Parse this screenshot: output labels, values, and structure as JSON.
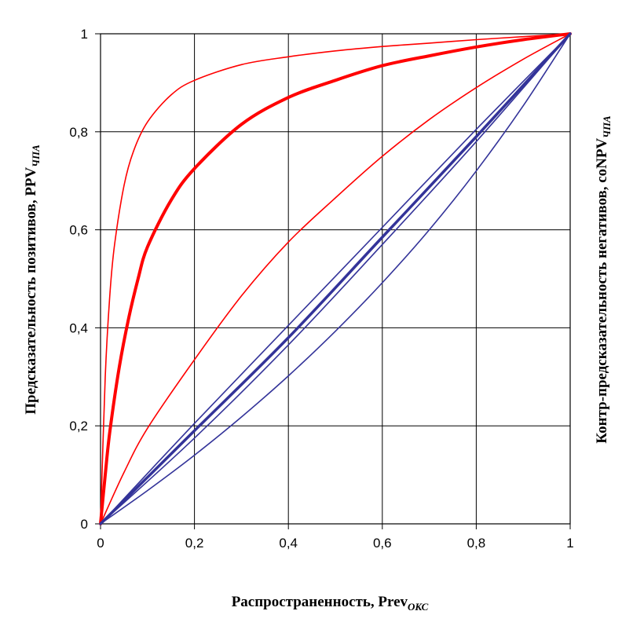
{
  "chart_data": {
    "type": "line",
    "xlim": [
      0,
      1
    ],
    "ylim": [
      0,
      1
    ],
    "grid": true,
    "xticks": [
      "0",
      "0,2",
      "0,4",
      "0,6",
      "0,8",
      "1"
    ],
    "yticks": [
      "0",
      "0,2",
      "0,4",
      "0,6",
      "0,8",
      "1"
    ],
    "xlabel": {
      "main": "Распространенность,  Prev",
      "sub": "ОКС"
    },
    "ylabel_left": {
      "main": "Предсказательность позитивов, PPV",
      "sub": "ЧПА"
    },
    "ylabel_right": {
      "main": "Контр-предсказательность негативов, coNPV",
      "sub": "ЧПА"
    },
    "colors": {
      "ppv": "#ff0000",
      "conpv": "#333399",
      "grid": "#000000"
    },
    "series": [
      {
        "group": "ppv",
        "width": 1.6,
        "x": [
          0,
          0.01,
          0.02,
          0.03,
          0.05,
          0.07,
          0.1,
          0.15,
          0.2,
          0.3,
          0.4,
          0.5,
          0.6,
          0.7,
          0.8,
          0.9,
          1
        ],
        "y": [
          0,
          0.3,
          0.47,
          0.57,
          0.69,
          0.76,
          0.82,
          0.875,
          0.905,
          0.937,
          0.953,
          0.965,
          0.974,
          0.981,
          0.988,
          0.994,
          1
        ]
      },
      {
        "group": "ppv",
        "width": 4,
        "x": [
          0,
          0.01,
          0.02,
          0.04,
          0.06,
          0.08,
          0.1,
          0.15,
          0.2,
          0.3,
          0.4,
          0.5,
          0.6,
          0.7,
          0.8,
          0.9,
          1
        ],
        "y": [
          0,
          0.1,
          0.19,
          0.32,
          0.42,
          0.5,
          0.565,
          0.66,
          0.725,
          0.815,
          0.87,
          0.905,
          0.935,
          0.955,
          0.973,
          0.988,
          1
        ]
      },
      {
        "group": "ppv",
        "width": 1.6,
        "x": [
          0,
          0.05,
          0.1,
          0.2,
          0.3,
          0.4,
          0.5,
          0.6,
          0.7,
          0.8,
          0.9,
          1
        ],
        "y": [
          0,
          0.105,
          0.195,
          0.335,
          0.465,
          0.575,
          0.665,
          0.75,
          0.825,
          0.89,
          0.948,
          1
        ]
      },
      {
        "group": "conpv",
        "width": 1.6,
        "x": [
          0,
          0.2,
          0.4,
          0.6,
          0.8,
          1
        ],
        "y": [
          0,
          0.205,
          0.405,
          0.605,
          0.805,
          1
        ]
      },
      {
        "group": "conpv",
        "width": 3.5,
        "x": [
          0,
          0.2,
          0.4,
          0.6,
          0.8,
          1
        ],
        "y": [
          0,
          0.19,
          0.38,
          0.585,
          0.79,
          1
        ]
      },
      {
        "group": "conpv",
        "width": 1.6,
        "x": [
          0,
          0.2,
          0.4,
          0.6,
          0.8,
          1
        ],
        "y": [
          0,
          0.175,
          0.365,
          0.57,
          0.78,
          1
        ]
      },
      {
        "group": "conpv",
        "width": 1.6,
        "x": [
          0,
          0.1,
          0.2,
          0.3,
          0.4,
          0.5,
          0.6,
          0.7,
          0.8,
          0.9,
          1
        ],
        "y": [
          0,
          0.068,
          0.14,
          0.218,
          0.302,
          0.393,
          0.492,
          0.6,
          0.72,
          0.853,
          1
        ]
      }
    ]
  }
}
